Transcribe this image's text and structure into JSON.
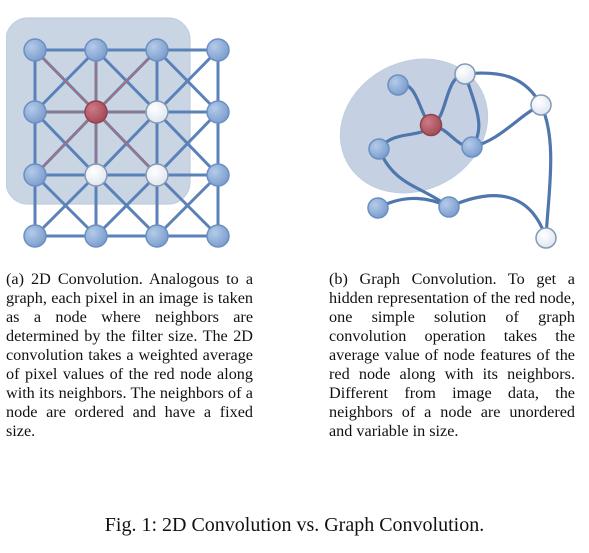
{
  "panels": [
    {
      "id": "a",
      "caption": "(a) 2D Convolution. Analogous to a graph, each pixel in an image is taken as a node where neighbors are determined by the filter size. The 2D convolution takes a weighted average of pixel values of the red node along with its neighbors. The neighbors of a node are ordered and have a fixed size."
    },
    {
      "id": "b",
      "caption": "(b) Graph Convolution. To get a hidden representation of the red node, one simple solution of graph convolution operation takes the average value of node features of the red node along with its neighbors. Different from image data, the neighbors of a node are unordered and variable in size."
    }
  ],
  "figure_caption": "Fig. 1: 2D Convolution vs. Graph Convolution.",
  "colors": {
    "node_blue": "#8aaad6",
    "node_red": "#b05763",
    "edge_blue": "#5a82b8",
    "edge_red": "#b06d78",
    "highlight_fill": "#a9bbd4",
    "white_node_stroke": "#8499b5"
  }
}
